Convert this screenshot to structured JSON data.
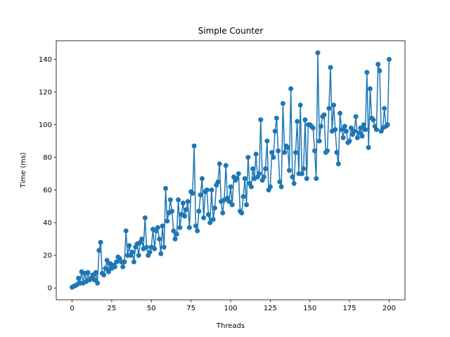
{
  "chart_data": {
    "type": "line",
    "title": "Simple Counter",
    "xlabel": "Threads",
    "ylabel": "Time (ms)",
    "x": [
      0,
      1,
      2,
      3,
      4,
      5,
      6,
      7,
      8,
      9,
      10,
      11,
      12,
      13,
      14,
      15,
      16,
      17,
      18,
      19,
      20,
      21,
      22,
      23,
      24,
      25,
      26,
      27,
      28,
      29,
      30,
      31,
      32,
      33,
      34,
      35,
      36,
      37,
      38,
      39,
      40,
      41,
      42,
      43,
      44,
      45,
      46,
      47,
      48,
      49,
      50,
      51,
      52,
      53,
      54,
      55,
      56,
      57,
      58,
      59,
      60,
      61,
      62,
      63,
      64,
      65,
      66,
      67,
      68,
      69,
      70,
      71,
      72,
      73,
      74,
      75,
      76,
      77,
      78,
      79,
      80,
      81,
      82,
      83,
      84,
      85,
      86,
      87,
      88,
      89,
      90,
      91,
      92,
      93,
      94,
      95,
      96,
      97,
      98,
      99,
      100,
      101,
      102,
      103,
      104,
      105,
      106,
      107,
      108,
      109,
      110,
      111,
      112,
      113,
      114,
      115,
      116,
      117,
      118,
      119,
      120,
      121,
      122,
      123,
      124,
      125,
      126,
      127,
      128,
      129,
      130,
      131,
      132,
      133,
      134,
      135,
      136,
      137,
      138,
      139,
      140,
      141,
      142,
      143,
      144,
      145,
      146,
      147,
      148,
      149,
      150,
      151,
      152,
      153,
      154,
      155,
      156,
      157,
      158,
      159,
      160,
      161,
      162,
      163,
      164,
      165,
      166,
      167,
      168,
      169,
      170,
      171,
      172,
      173,
      174,
      175,
      176,
      177,
      178,
      179,
      180,
      181,
      182,
      183,
      184,
      185,
      186,
      187,
      188,
      189,
      190,
      191,
      192,
      193,
      194,
      195,
      196,
      197,
      198,
      199,
      200
    ],
    "series": [
      {
        "name": "Time",
        "color": "#1f77b4",
        "values": [
          0.5,
          1,
          1.5,
          2,
          6,
          3,
          10,
          3,
          9,
          4,
          9.5,
          5,
          6,
          8,
          5,
          9.5,
          3,
          23,
          28,
          9,
          8,
          12,
          17,
          10,
          15,
          12,
          14,
          13,
          16,
          19,
          18,
          16,
          13,
          16,
          35,
          20,
          26,
          20,
          22,
          16,
          25,
          27,
          20,
          28,
          30,
          24,
          43,
          25,
          20,
          22,
          25,
          36,
          24,
          35,
          37,
          30,
          21,
          38,
          25,
          61,
          41,
          46,
          54,
          47,
          35,
          30,
          33,
          54,
          37,
          45,
          52,
          44,
          48,
          53,
          37,
          59,
          58,
          87,
          38,
          35,
          47,
          57,
          67,
          43,
          59,
          60,
          45,
          40,
          60,
          42,
          49,
          63,
          65,
          76,
          53,
          46,
          54,
          75,
          55,
          53,
          62,
          51,
          68,
          66,
          67,
          70,
          47,
          46,
          56,
          67,
          51,
          80,
          64,
          62,
          73,
          67,
          82,
          68,
          70,
          103,
          66,
          68,
          73,
          90,
          60,
          62,
          83,
          80,
          96,
          104,
          84,
          65,
          62,
          113,
          83,
          87,
          86,
          72,
          122,
          68,
          64,
          83,
          102,
          70,
          112,
          70,
          73,
          103,
          67,
          100,
          100,
          99,
          98,
          84,
          67,
          144,
          90,
          99,
          105,
          106,
          83,
          84,
          110,
          135,
          96,
          112,
          97,
          83,
          76,
          107,
          97,
          92,
          99,
          96,
          89,
          90,
          98,
          94,
          96,
          105,
          92,
          95,
          98,
          93,
          100,
          97,
          132,
          86,
          122,
          104,
          103,
          99,
          97,
          137,
          133,
          96,
          98,
          110,
          99,
          100,
          140
        ]
      }
    ],
    "xlim": [
      -10,
      210
    ],
    "ylim": [
      -7.2,
      151.4
    ],
    "xticks": [
      0,
      25,
      50,
      75,
      100,
      125,
      150,
      175,
      200
    ],
    "yticks": [
      0,
      20,
      40,
      60,
      80,
      100,
      120,
      140
    ]
  }
}
